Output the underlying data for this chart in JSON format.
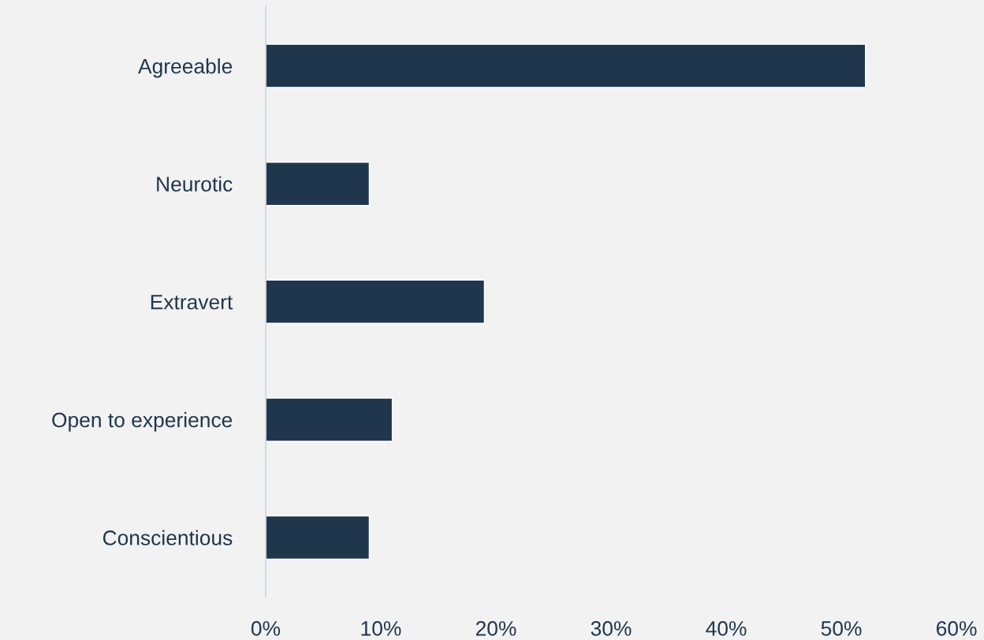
{
  "chart_data": {
    "type": "bar",
    "orientation": "horizontal",
    "categories": [
      "Agreeable",
      "Neurotic",
      "Extravert",
      "Open to experience",
      "Conscientious"
    ],
    "values": [
      52.1,
      9.0,
      19.0,
      11.0,
      9.0
    ],
    "color": "#20364d",
    "xlim": [
      0,
      60
    ],
    "xticks": [
      {
        "value": 0,
        "label": "0%"
      },
      {
        "value": 10,
        "label": "10%"
      },
      {
        "value": 20,
        "label": "20%"
      },
      {
        "value": 30,
        "label": "30%"
      },
      {
        "value": 40,
        "label": "40%"
      },
      {
        "value": 50,
        "label": "50%"
      },
      {
        "value": 60,
        "label": "60%"
      }
    ],
    "grid": false,
    "legend": false
  }
}
